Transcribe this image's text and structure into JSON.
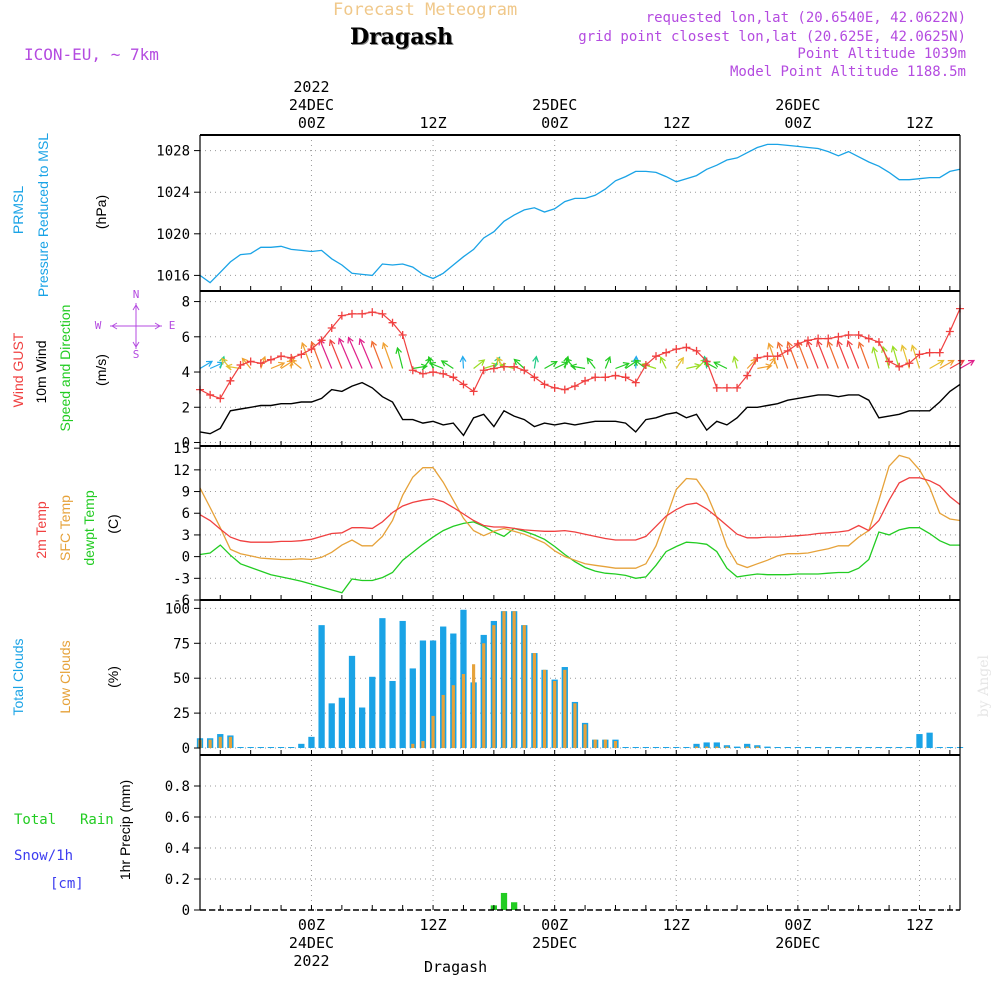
{
  "header": {
    "product_title": "Forecast Meteogram",
    "location": "Dragash",
    "model": "ICON-EU, ~ 7km",
    "requested": "requested lon,lat (20.6540E, 42.0622N)",
    "grid_point": "grid point closest lon,lat (20.625E, 42.0625N)",
    "point_altitude": "Point Altitude 1039m",
    "model_altitude": "Model Point Altitude 1188.5m",
    "footer_location": "Dragash",
    "watermark": "by Angel"
  },
  "time_axis": {
    "top_labels": [
      {
        "hour": 24,
        "lines": [
          "2022",
          "24DEC",
          "00Z"
        ]
      },
      {
        "hour": 36,
        "lines": [
          "12Z"
        ]
      },
      {
        "hour": 48,
        "lines": [
          "25DEC",
          "00Z"
        ]
      },
      {
        "hour": 60,
        "lines": [
          "12Z"
        ]
      },
      {
        "hour": 72,
        "lines": [
          "26DEC",
          "00Z"
        ]
      },
      {
        "hour": 84,
        "lines": [
          "12Z"
        ]
      }
    ],
    "bottom_labels": [
      {
        "hour": 24,
        "lines": [
          "00Z",
          "24DEC",
          "2022"
        ]
      },
      {
        "hour": 36,
        "lines": [
          "12Z"
        ]
      },
      {
        "hour": 48,
        "lines": [
          "00Z",
          "25DEC"
        ]
      },
      {
        "hour": 60,
        "lines": [
          "12Z"
        ]
      },
      {
        "hour": 72,
        "lines": [
          "00Z",
          "26DEC"
        ]
      },
      {
        "hour": 84,
        "lines": [
          "12Z"
        ]
      }
    ]
  },
  "panel_labels": {
    "pressure": {
      "l1": "PRMSL",
      "l2": "Pressure Reduced to MSL",
      "unit": "(hPa)"
    },
    "wind": {
      "l1": "Wind GUST",
      "l2": "10m Wind",
      "l3": "Speed and Direction",
      "unit": "(m/s)",
      "compass_n": "N",
      "compass_s": "S",
      "compass_w": "W",
      "compass_e": "E"
    },
    "temp": {
      "l1": "2m Temp",
      "l2": "SFC Temp",
      "l3": "dewpt Temp",
      "unit": "(C)"
    },
    "clouds": {
      "l1": "Total Clouds",
      "l2": "Low Clouds",
      "unit": "(%)"
    },
    "precip": {
      "total": "Total",
      "rain": "Rain",
      "snow": "Snow/1h",
      "snow_unit": "[cm]",
      "axis": "1hr Precip (mm)"
    }
  },
  "colors": {
    "pressure": "#1aa3e6",
    "gust": "#f04040",
    "wind": "#000000",
    "t2m": "#f04040",
    "tsfc": "#e6a23a",
    "dewpt": "#22cc22",
    "total_cloud": "#1aa3e6",
    "low_cloud": "#e6a23a",
    "rain": "#22cc22",
    "snow": "#3c3cf0",
    "arrow": "#22cc22",
    "purple": "#b44be0"
  },
  "chart_data": [
    {
      "type": "line",
      "panel": "pressure",
      "title": "PRMSL Pressure Reduced to MSL",
      "ylabel": "(hPa)",
      "x_hours": [
        13,
        14,
        15,
        16,
        17,
        18,
        19,
        20,
        21,
        22,
        23,
        24,
        25,
        26,
        27,
        28,
        29,
        30,
        31,
        32,
        33,
        34,
        35,
        36,
        37,
        38,
        39,
        40,
        41,
        42,
        43,
        44,
        45,
        46,
        47,
        48,
        49,
        50,
        51,
        52,
        53,
        54,
        55,
        56,
        57,
        58,
        59,
        60,
        61,
        62,
        63,
        64,
        65,
        66,
        67,
        68,
        69,
        70,
        71,
        72,
        73,
        74,
        75,
        76,
        77,
        78,
        79,
        80,
        81,
        82,
        83,
        84,
        85,
        86,
        87,
        88
      ],
      "values": [
        1016.0,
        1015.3,
        1016.3,
        1017.3,
        1018.0,
        1018.1,
        1018.7,
        1018.7,
        1018.8,
        1018.5,
        1018.4,
        1018.3,
        1018.4,
        1017.6,
        1017.0,
        1016.2,
        1016.1,
        1016.0,
        1017.1,
        1017.0,
        1017.1,
        1016.8,
        1016.1,
        1015.7,
        1016.2,
        1017.0,
        1017.8,
        1018.5,
        1019.6,
        1020.2,
        1021.2,
        1021.8,
        1022.3,
        1022.5,
        1022.1,
        1022.4,
        1023.1,
        1023.4,
        1023.4,
        1023.7,
        1024.3,
        1025.1,
        1025.5,
        1026.0,
        1026.0,
        1025.9,
        1025.5,
        1025.0,
        1025.3,
        1025.6,
        1026.2,
        1026.6,
        1027.1,
        1027.3,
        1027.8,
        1028.3,
        1028.6,
        1028.6,
        1028.5,
        1028.4,
        1028.3,
        1028.2,
        1027.9,
        1027.5,
        1027.9,
        1027.4,
        1026.9,
        1026.5,
        1025.9,
        1025.2,
        1025.2,
        1025.3,
        1025.4,
        1025.4,
        1026.0,
        1026.2
      ],
      "ylim": [
        1014.5,
        1029.5
      ],
      "yticks": [
        1016,
        1020,
        1024,
        1028
      ]
    },
    {
      "type": "line",
      "panel": "wind",
      "title": "Wind GUST / 10m Wind Speed and Direction",
      "ylabel": "(m/s)",
      "x_hours": [
        13,
        14,
        15,
        16,
        17,
        18,
        19,
        20,
        21,
        22,
        23,
        24,
        25,
        26,
        27,
        28,
        29,
        30,
        31,
        32,
        33,
        34,
        35,
        36,
        37,
        38,
        39,
        40,
        41,
        42,
        43,
        44,
        45,
        46,
        47,
        48,
        49,
        50,
        51,
        52,
        53,
        54,
        55,
        56,
        57,
        58,
        59,
        60,
        61,
        62,
        63,
        64,
        65,
        66,
        67,
        68,
        69,
        70,
        71,
        72,
        73,
        74,
        75,
        76,
        77,
        78,
        79,
        80,
        81,
        82,
        83,
        84,
        85,
        86,
        87,
        88
      ],
      "gust": [
        3.0,
        2.7,
        2.5,
        3.5,
        4.4,
        4.6,
        4.5,
        4.7,
        4.9,
        4.8,
        5.0,
        5.3,
        5.8,
        6.5,
        7.2,
        7.3,
        7.3,
        7.4,
        7.3,
        6.8,
        6.1,
        4.1,
        3.9,
        4.0,
        3.9,
        3.7,
        3.3,
        2.9,
        4.1,
        4.2,
        4.3,
        4.3,
        4.1,
        3.7,
        3.3,
        3.1,
        3.0,
        3.2,
        3.5,
        3.7,
        3.7,
        3.8,
        3.7,
        3.4,
        4.4,
        4.9,
        5.1,
        5.3,
        5.4,
        5.2,
        4.6,
        3.1,
        3.1,
        3.1,
        3.8,
        4.8,
        4.9,
        4.9,
        5.2,
        5.6,
        5.8,
        5.9,
        5.9,
        6.0,
        6.1,
        6.1,
        5.9,
        5.7,
        4.6,
        4.3,
        4.5,
        5.0,
        5.1,
        5.1,
        6.3,
        7.6
      ],
      "wind": [
        0.6,
        0.5,
        0.8,
        1.8,
        1.9,
        2.0,
        2.1,
        2.1,
        2.2,
        2.2,
        2.3,
        2.3,
        2.5,
        3.0,
        2.9,
        3.2,
        3.4,
        3.1,
        2.6,
        2.3,
        1.3,
        1.3,
        1.1,
        1.2,
        1.0,
        1.1,
        0.4,
        1.4,
        1.6,
        0.9,
        1.8,
        1.5,
        1.3,
        0.9,
        1.1,
        1.0,
        1.1,
        1.0,
        1.1,
        1.2,
        1.2,
        1.2,
        1.1,
        0.6,
        1.3,
        1.4,
        1.6,
        1.7,
        1.4,
        1.6,
        0.7,
        1.2,
        1.0,
        1.4,
        2.0,
        2.0,
        2.1,
        2.2,
        2.4,
        2.5,
        2.6,
        2.7,
        2.7,
        2.6,
        2.7,
        2.7,
        2.4,
        1.4,
        1.5,
        1.6,
        1.8,
        1.8,
        1.8,
        2.3,
        2.9,
        3.3
      ],
      "ylim": [
        -0.2,
        8.6
      ],
      "yticks": [
        0,
        2,
        4,
        6,
        8
      ],
      "arrow_base": 4.2
    },
    {
      "type": "line",
      "panel": "temp",
      "title": "2m Temp / SFC Temp / dewpt Temp",
      "ylabel": "(C)",
      "x_hours": [
        13,
        14,
        15,
        16,
        17,
        18,
        19,
        20,
        21,
        22,
        23,
        24,
        25,
        26,
        27,
        28,
        29,
        30,
        31,
        32,
        33,
        34,
        35,
        36,
        37,
        38,
        39,
        40,
        41,
        42,
        43,
        44,
        45,
        46,
        47,
        48,
        49,
        50,
        51,
        52,
        53,
        54,
        55,
        56,
        57,
        58,
        59,
        60,
        61,
        62,
        63,
        64,
        65,
        66,
        67,
        68,
        69,
        70,
        71,
        72,
        73,
        74,
        75,
        76,
        77,
        78,
        79,
        80,
        81,
        82,
        83,
        84,
        85,
        86,
        87,
        88
      ],
      "t2m": [
        5.8,
        5.0,
        3.8,
        2.7,
        2.2,
        2.0,
        2.0,
        2.0,
        2.1,
        2.1,
        2.2,
        2.4,
        2.8,
        3.2,
        3.3,
        4.0,
        4.0,
        3.9,
        4.8,
        6.1,
        7.0,
        7.5,
        7.8,
        8.0,
        7.6,
        6.8,
        5.9,
        5.0,
        4.3,
        4.1,
        4.1,
        3.9,
        3.7,
        3.6,
        3.5,
        3.5,
        3.6,
        3.4,
        3.1,
        2.8,
        2.5,
        2.3,
        2.3,
        2.3,
        2.8,
        4.2,
        5.6,
        6.5,
        7.2,
        7.4,
        6.6,
        5.5,
        4.3,
        3.1,
        2.6,
        2.6,
        2.7,
        2.7,
        2.8,
        2.9,
        3.0,
        3.2,
        3.3,
        3.4,
        3.6,
        4.3,
        3.6,
        5.0,
        7.8,
        10.2,
        10.9,
        10.9,
        10.5,
        9.8,
        8.3,
        7.2
      ],
      "tsfc": [
        9.5,
        6.8,
        4.0,
        1.0,
        0.4,
        0.1,
        -0.2,
        -0.3,
        -0.4,
        -0.4,
        -0.3,
        -0.4,
        -0.1,
        0.6,
        1.6,
        2.3,
        1.5,
        1.5,
        2.8,
        5.0,
        8.5,
        11.0,
        12.3,
        12.3,
        10.3,
        7.8,
        5.3,
        3.6,
        2.9,
        3.5,
        3.9,
        3.5,
        3.1,
        2.5,
        1.9,
        0.8,
        0.0,
        -0.5,
        -1.0,
        -1.2,
        -1.4,
        -1.6,
        -1.6,
        -1.6,
        -1.0,
        1.5,
        5.3,
        9.3,
        10.8,
        10.7,
        8.7,
        5.4,
        1.4,
        -1.0,
        -1.5,
        -1.0,
        -0.5,
        0.1,
        0.4,
        0.4,
        0.5,
        0.8,
        1.1,
        1.5,
        1.5,
        2.7,
        3.6,
        7.8,
        12.5,
        14.0,
        13.6,
        12.0,
        9.6,
        6.0,
        5.2,
        5.0
      ],
      "dewpt": [
        0.3,
        0.5,
        1.6,
        0.2,
        -1.0,
        -1.5,
        -2.0,
        -2.5,
        -2.8,
        -3.1,
        -3.4,
        -3.8,
        -4.2,
        -4.6,
        -5.0,
        -3.1,
        -3.3,
        -3.3,
        -2.9,
        -2.2,
        -0.5,
        0.6,
        1.7,
        2.7,
        3.6,
        4.2,
        4.6,
        4.8,
        4.2,
        3.4,
        2.8,
        3.9,
        3.5,
        3.0,
        2.4,
        1.4,
        0.3,
        -0.7,
        -1.5,
        -2.0,
        -2.3,
        -2.4,
        -2.6,
        -3.0,
        -2.8,
        -1.2,
        0.7,
        1.4,
        2.0,
        1.9,
        1.7,
        0.7,
        -1.6,
        -2.8,
        -2.6,
        -2.4,
        -2.5,
        -2.5,
        -2.5,
        -2.4,
        -2.4,
        -2.4,
        -2.3,
        -2.2,
        -2.2,
        -1.6,
        -0.4,
        3.4,
        3.0,
        3.7,
        4.0,
        4.0,
        3.2,
        2.2,
        1.6,
        1.6
      ],
      "ylim": [
        -6,
        15.3
      ],
      "yticks": [
        -6,
        -3,
        0,
        3,
        6,
        9,
        12,
        15
      ]
    },
    {
      "type": "bar",
      "panel": "clouds",
      "title": "Total Clouds / Low Clouds",
      "ylabel": "(%)",
      "x_hours": [
        13,
        14,
        15,
        16,
        17,
        18,
        19,
        20,
        21,
        22,
        23,
        24,
        25,
        26,
        27,
        28,
        29,
        30,
        31,
        32,
        33,
        34,
        35,
        36,
        37,
        38,
        39,
        40,
        41,
        42,
        43,
        44,
        45,
        46,
        47,
        48,
        49,
        50,
        51,
        52,
        53,
        54,
        55,
        56,
        57,
        58,
        59,
        60,
        61,
        62,
        63,
        64,
        65,
        66,
        67,
        68,
        69,
        70,
        71,
        72,
        73,
        74,
        75,
        76,
        77,
        78,
        79,
        80,
        81,
        82,
        83,
        84,
        85,
        86,
        87,
        88
      ],
      "total": [
        7,
        7,
        10,
        9,
        0,
        0,
        0,
        0,
        0,
        0,
        3,
        8,
        88,
        32,
        36,
        66,
        29,
        51,
        93,
        48,
        91,
        57,
        77,
        77,
        87,
        82,
        99,
        47,
        81,
        91,
        98,
        98,
        88,
        68,
        56,
        49,
        58,
        33,
        18,
        6,
        6,
        6,
        0,
        0,
        0,
        0,
        0,
        0,
        0,
        3,
        4,
        4,
        2,
        1,
        3,
        2,
        1,
        0,
        0,
        0,
        0,
        0,
        0,
        0,
        0,
        0,
        0,
        0,
        0,
        0,
        0,
        10,
        11,
        0,
        0,
        0
      ],
      "low": [
        6,
        6,
        8,
        8,
        0,
        0,
        0,
        0,
        0,
        0,
        0,
        0,
        0,
        0,
        0,
        0,
        0,
        0,
        0,
        0,
        0,
        3,
        5,
        23,
        38,
        45,
        53,
        60,
        75,
        88,
        98,
        98,
        88,
        68,
        56,
        48,
        56,
        32,
        17,
        6,
        6,
        5,
        0,
        0,
        0,
        0,
        0,
        0,
        0,
        1,
        1,
        1,
        1,
        0,
        1,
        1,
        0,
        0,
        0,
        0,
        0,
        0,
        0,
        0,
        0,
        0,
        0,
        0,
        0,
        0,
        0,
        0,
        0,
        0,
        0,
        0
      ],
      "ylim": [
        -5,
        106
      ],
      "yticks": [
        0,
        25,
        50,
        75,
        100
      ]
    },
    {
      "type": "bar",
      "panel": "precip",
      "title": "1hr Precip",
      "ylabel": "1hr Precip (mm)",
      "x_hours": [
        42,
        43,
        44
      ],
      "rain": [
        0.03,
        0.11,
        0.05
      ],
      "snow_x_hours": [],
      "snow": [],
      "ylim": [
        0,
        1.0
      ],
      "yticks": [
        0,
        0.2,
        0.4,
        0.6,
        0.8
      ]
    }
  ]
}
